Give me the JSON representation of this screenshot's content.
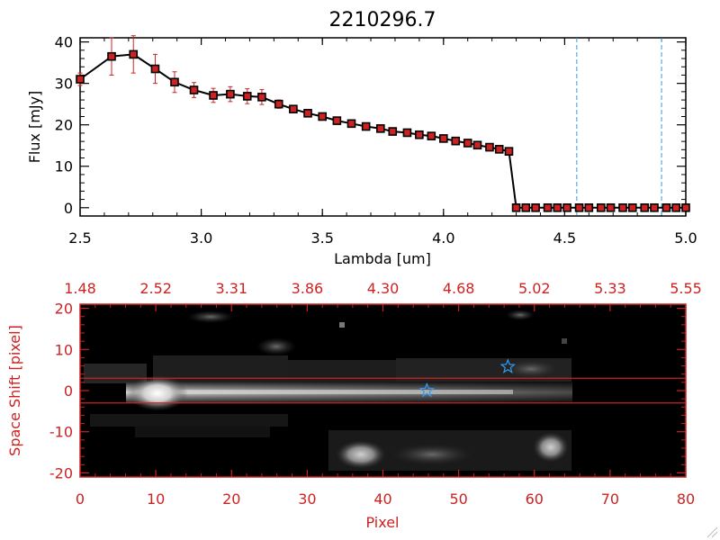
{
  "title": "2210296.7",
  "chart_data": [
    {
      "type": "line",
      "title": "2210296.7",
      "xlabel": "Lambda [um]",
      "ylabel": "Flux [mJy]",
      "xlim": [
        2.5,
        5.0
      ],
      "ylim": [
        -2,
        41
      ],
      "xticks": [
        "2.5",
        "3.0",
        "3.5",
        "4.0",
        "4.5",
        "5.0"
      ],
      "yticks": [
        "0",
        "10",
        "20",
        "30",
        "40"
      ],
      "grid": false,
      "series": [
        {
          "x": [
            2.5,
            2.63,
            2.72,
            2.81,
            2.89,
            2.97,
            3.05,
            3.12,
            3.19,
            3.25,
            3.32,
            3.38,
            3.44,
            3.5,
            3.56,
            3.62,
            3.68,
            3.74,
            3.79,
            3.85,
            3.9,
            3.95,
            4.0,
            4.05,
            4.1,
            4.14,
            4.19,
            4.23,
            4.27,
            4.3,
            4.34,
            4.38,
            4.43,
            4.47,
            4.51,
            4.56,
            4.6,
            4.65,
            4.69,
            4.74,
            4.78,
            4.83,
            4.87,
            4.92,
            4.96,
            5.0
          ],
          "y": [
            31,
            36.5,
            37,
            33.5,
            30.3,
            28.4,
            27.1,
            27.4,
            26.9,
            26.7,
            25,
            23.8,
            22.8,
            22,
            21,
            20.3,
            19.6,
            19.1,
            18.4,
            18.1,
            17.6,
            17.3,
            16.7,
            16.1,
            15.6,
            15.1,
            14.6,
            14.1,
            13.6,
            0,
            0,
            0,
            0,
            0,
            0,
            0,
            0,
            0,
            0,
            0,
            0,
            0,
            0,
            0,
            0,
            0
          ],
          "yerr": [
            1.5,
            4.5,
            4.5,
            3.5,
            2.5,
            1.8,
            1.7,
            1.8,
            1.8,
            1.8,
            1.0,
            0.8,
            0.6,
            0.5,
            0.5,
            0.5,
            0.5,
            0.4,
            0.4,
            0.4,
            0.4,
            0.4,
            0.4,
            0.3,
            0.3,
            0.3,
            0.3,
            0.3,
            0.3,
            0,
            0,
            0,
            0,
            0,
            0,
            0,
            0,
            0,
            0,
            0,
            0,
            0,
            0,
            0,
            0,
            0
          ]
        }
      ],
      "vlines": [
        4.55,
        4.9
      ],
      "colors": {
        "line": "#000000",
        "marker": "#cc2222",
        "errorbar": "#cc2222",
        "vline": "#3399dd"
      }
    },
    {
      "type": "heatmap",
      "xlabel": "Pixel",
      "ylabel": "Space Shift [pixel]",
      "xlim": [
        0,
        80
      ],
      "ylim": [
        -21,
        21
      ],
      "xticks": [
        "0",
        "10",
        "20",
        "30",
        "40",
        "50",
        "60",
        "70",
        "80"
      ],
      "yticks": [
        "-20",
        "-10",
        "0",
        "10",
        "20"
      ],
      "top_xticks": [
        "1.48",
        "2.52",
        "3.31",
        "3.86",
        "4.30",
        "4.68",
        "5.02",
        "5.33",
        "5.55"
      ],
      "hlines": [
        3,
        -3
      ],
      "star_markers": [
        {
          "x": 45.8,
          "y": 0
        },
        {
          "x": 56.5,
          "y": 5.8
        }
      ],
      "colors": {
        "axes": "#cc2222",
        "background": "#000000",
        "star": "#3399ee"
      }
    }
  ]
}
